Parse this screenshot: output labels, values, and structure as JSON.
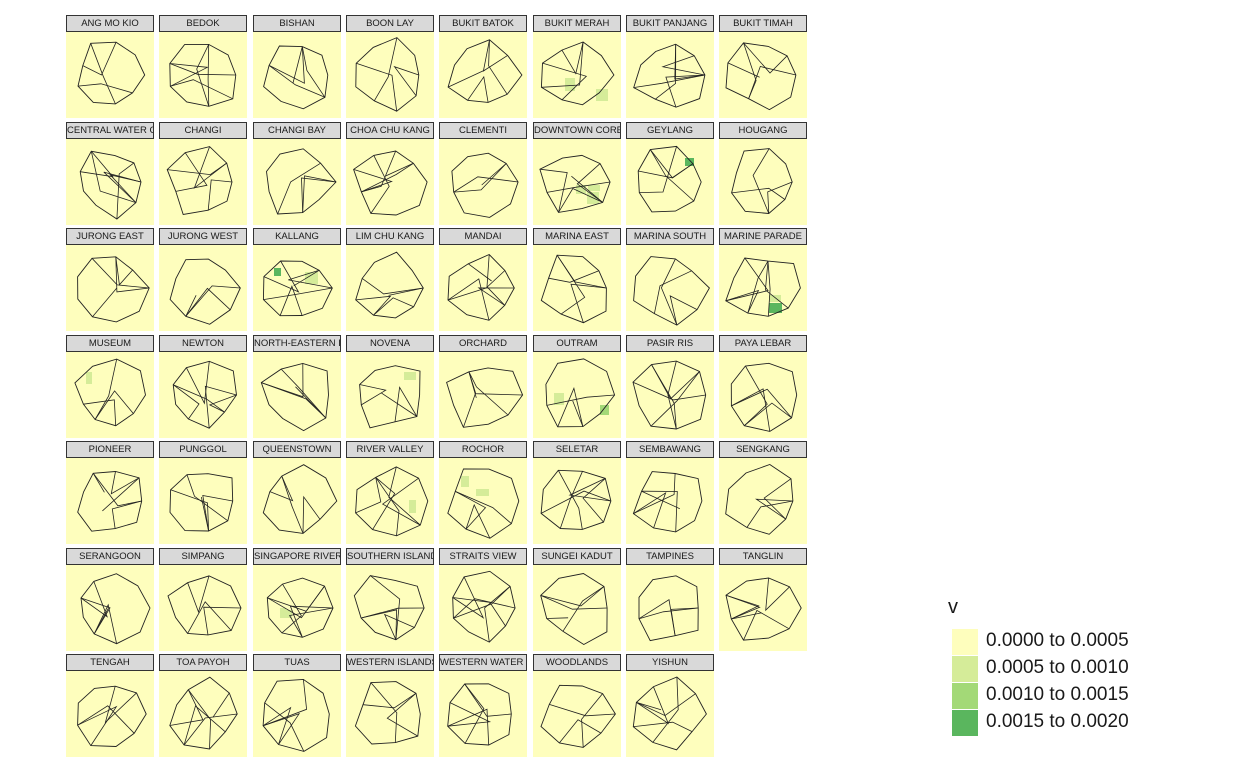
{
  "facets": [
    {
      "name": "ANG MO KIO",
      "hot": []
    },
    {
      "name": "BEDOK",
      "hot": []
    },
    {
      "name": "BISHAN",
      "hot": []
    },
    {
      "name": "BOON LAY",
      "hot": []
    },
    {
      "name": "BUKIT BATOK",
      "hot": []
    },
    {
      "name": "BUKIT MERAH",
      "hot": [
        1,
        1
      ]
    },
    {
      "name": "BUKIT PANJANG",
      "hot": []
    },
    {
      "name": "BUKIT TIMAH",
      "hot": []
    },
    {
      "name": "CENTRAL WATER CATCHMENT",
      "hot": []
    },
    {
      "name": "CHANGI",
      "hot": []
    },
    {
      "name": "CHANGI BAY",
      "hot": []
    },
    {
      "name": "CHOA CHU KANG",
      "hot": []
    },
    {
      "name": "CLEMENTI",
      "hot": []
    },
    {
      "name": "DOWNTOWN CORE",
      "hot": [
        1,
        1,
        1
      ]
    },
    {
      "name": "GEYLANG",
      "hot": [
        3
      ]
    },
    {
      "name": "HOUGANG",
      "hot": []
    },
    {
      "name": "JURONG EAST",
      "hot": []
    },
    {
      "name": "JURONG WEST",
      "hot": []
    },
    {
      "name": "KALLANG",
      "hot": [
        1,
        3
      ]
    },
    {
      "name": "LIM CHU KANG",
      "hot": []
    },
    {
      "name": "MANDAI",
      "hot": []
    },
    {
      "name": "MARINA EAST",
      "hot": []
    },
    {
      "name": "MARINA SOUTH",
      "hot": []
    },
    {
      "name": "MARINE PARADE",
      "hot": [
        3,
        1
      ]
    },
    {
      "name": "MUSEUM",
      "hot": [
        1
      ]
    },
    {
      "name": "NEWTON",
      "hot": []
    },
    {
      "name": "NORTH-EASTERN ISLANDS",
      "hot": []
    },
    {
      "name": "NOVENA",
      "hot": [
        1
      ]
    },
    {
      "name": "ORCHARD",
      "hot": []
    },
    {
      "name": "OUTRAM",
      "hot": [
        2,
        1
      ]
    },
    {
      "name": "PASIR RIS",
      "hot": []
    },
    {
      "name": "PAYA LEBAR",
      "hot": []
    },
    {
      "name": "PIONEER",
      "hot": []
    },
    {
      "name": "PUNGGOL",
      "hot": []
    },
    {
      "name": "QUEENSTOWN",
      "hot": []
    },
    {
      "name": "RIVER VALLEY",
      "hot": [
        1
      ]
    },
    {
      "name": "ROCHOR",
      "hot": [
        1,
        1
      ]
    },
    {
      "name": "SELETAR",
      "hot": []
    },
    {
      "name": "SEMBAWANG",
      "hot": []
    },
    {
      "name": "SENGKANG",
      "hot": []
    },
    {
      "name": "SERANGOON",
      "hot": []
    },
    {
      "name": "SIMPANG",
      "hot": []
    },
    {
      "name": "SINGAPORE RIVER",
      "hot": [
        1,
        1
      ]
    },
    {
      "name": "SOUTHERN ISLANDS",
      "hot": []
    },
    {
      "name": "STRAITS VIEW",
      "hot": []
    },
    {
      "name": "SUNGEI KADUT",
      "hot": []
    },
    {
      "name": "TAMPINES",
      "hot": []
    },
    {
      "name": "TANGLIN",
      "hot": []
    },
    {
      "name": "TENGAH",
      "hot": []
    },
    {
      "name": "TOA PAYOH",
      "hot": []
    },
    {
      "name": "TUAS",
      "hot": []
    },
    {
      "name": "WESTERN ISLANDS",
      "hot": []
    },
    {
      "name": "WESTERN WATER CATCHMENT",
      "hot": []
    },
    {
      "name": "WOODLANDS",
      "hot": []
    },
    {
      "name": "YISHUN",
      "hot": []
    }
  ],
  "legend": {
    "title": "v",
    "classes": [
      {
        "label": "0.0000 to 0.0005",
        "color": "#fefebd"
      },
      {
        "label": "0.0005 to 0.0010",
        "color": "#d5ec99"
      },
      {
        "label": "0.0010 to 0.0015",
        "color": "#a3d977"
      },
      {
        "label": "0.0015 to 0.0020",
        "color": "#5ab65e"
      }
    ]
  }
}
